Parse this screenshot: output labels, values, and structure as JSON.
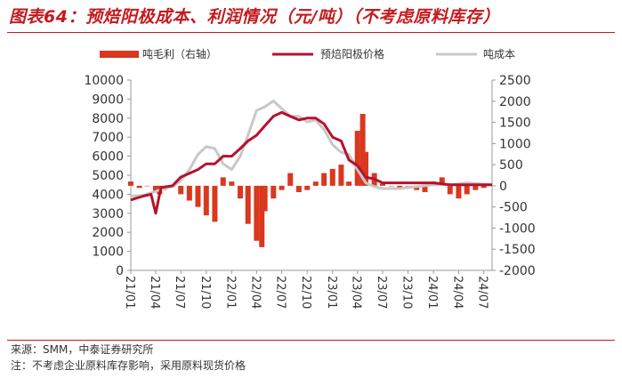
{
  "title": "图表64：预焙阳极成本、利润情况（元/吨）（不考虑原料库存）",
  "source": "来源：SMM，中泰证券研究所",
  "footnote": "注：不考虑企业原料库存影响，采用原料现货价格",
  "colors": {
    "profit": "#d9381e",
    "price": "#b5122e",
    "cost": "#c8c8c8",
    "title": "#c41a1f"
  },
  "chart_data": {
    "type": "bar+line",
    "legend_position": "top",
    "grid": false,
    "x_labels": [
      "21/01",
      "21/04",
      "21/07",
      "21/10",
      "22/01",
      "22/04",
      "22/07",
      "22/10",
      "23/01",
      "23/04",
      "23/07",
      "23/10",
      "24/01",
      "24/04",
      "24/07"
    ],
    "x_range": [
      "2021-01-01",
      "2024-07-31"
    ],
    "y_left": {
      "label": "",
      "lim": [
        0,
        10000
      ],
      "ticks": [
        0,
        1000,
        2000,
        3000,
        4000,
        5000,
        6000,
        7000,
        8000,
        9000,
        10000
      ]
    },
    "y_right": {
      "label": "",
      "lim": [
        -2000,
        2500
      ],
      "ticks": [
        -2000,
        -1500,
        -1000,
        -500,
        0,
        500,
        1000,
        1500,
        2000,
        2500
      ]
    },
    "series": [
      {
        "name": "吨毛利（右轴）",
        "kind": "bar",
        "axis": "right",
        "x": [
          "2021-01-01",
          "2021-02-01",
          "2021-03-01",
          "2021-04-01",
          "2021-04-15",
          "2021-05-01",
          "2021-06-01",
          "2021-07-01",
          "2021-08-01",
          "2021-09-01",
          "2021-10-01",
          "2021-11-01",
          "2021-12-01",
          "2022-01-01",
          "2022-02-01",
          "2022-03-01",
          "2022-04-01",
          "2022-04-20",
          "2022-05-01",
          "2022-06-01",
          "2022-07-01",
          "2022-08-01",
          "2022-09-01",
          "2022-10-01",
          "2022-11-01",
          "2022-12-01",
          "2023-01-01",
          "2023-02-01",
          "2023-03-01",
          "2023-04-01",
          "2023-04-20",
          "2023-05-01",
          "2023-06-01",
          "2023-07-01",
          "2023-08-01",
          "2023-09-01",
          "2023-10-01",
          "2023-11-01",
          "2023-12-01",
          "2024-01-01",
          "2024-02-01",
          "2024-03-01",
          "2024-04-01",
          "2024-05-01",
          "2024-06-01",
          "2024-07-01"
        ],
        "values": [
          100,
          -50,
          0,
          -150,
          -200,
          -100,
          0,
          -200,
          -350,
          -500,
          -700,
          -850,
          200,
          100,
          -300,
          -900,
          -1300,
          -1450,
          -600,
          -300,
          -100,
          300,
          -150,
          -100,
          100,
          300,
          400,
          500,
          100,
          1300,
          1700,
          800,
          300,
          50,
          0,
          -50,
          0,
          -100,
          -150,
          100,
          200,
          -200,
          -300,
          -200,
          -100,
          -50
        ]
      },
      {
        "name": "预焙阳极价格",
        "kind": "line",
        "axis": "left",
        "x": [
          "2021-01-01",
          "2021-02-15",
          "2021-03-15",
          "2021-04-01",
          "2021-04-20",
          "2021-06-01",
          "2021-07-01",
          "2021-08-01",
          "2021-09-01",
          "2021-10-01",
          "2021-11-01",
          "2021-12-01",
          "2022-01-01",
          "2022-02-01",
          "2022-03-01",
          "2022-04-01",
          "2022-05-01",
          "2022-06-01",
          "2022-07-01",
          "2022-08-01",
          "2022-09-01",
          "2022-10-01",
          "2022-11-01",
          "2022-12-01",
          "2023-01-01",
          "2023-02-01",
          "2023-03-01",
          "2023-04-01",
          "2023-05-01",
          "2023-06-01",
          "2023-07-01",
          "2023-08-01",
          "2023-10-01",
          "2023-12-01",
          "2024-01-01",
          "2024-03-01",
          "2024-05-01",
          "2024-07-31"
        ],
        "values": [
          3700,
          3900,
          4000,
          3000,
          4350,
          4450,
          4900,
          5100,
          5300,
          5600,
          5600,
          6000,
          6000,
          6400,
          6800,
          7100,
          7600,
          8100,
          8300,
          8100,
          7900,
          8000,
          8000,
          7700,
          7000,
          6800,
          5800,
          5500,
          4900,
          4800,
          4600,
          4600,
          4600,
          4600,
          4600,
          4500,
          4500,
          4500
        ]
      },
      {
        "name": "吨成本",
        "kind": "line",
        "axis": "left",
        "x": [
          "2021-01-01",
          "2021-02-15",
          "2021-04-01",
          "2021-05-01",
          "2021-06-01",
          "2021-07-01",
          "2021-08-01",
          "2021-09-01",
          "2021-10-01",
          "2021-11-01",
          "2021-12-01",
          "2022-01-01",
          "2022-02-01",
          "2022-03-01",
          "2022-04-01",
          "2022-05-01",
          "2022-06-01",
          "2022-07-01",
          "2022-08-01",
          "2022-09-01",
          "2022-10-01",
          "2022-11-01",
          "2022-12-01",
          "2023-01-01",
          "2023-02-01",
          "2023-03-01",
          "2023-04-01",
          "2023-05-01",
          "2023-06-01",
          "2023-07-01",
          "2023-09-01",
          "2023-11-01",
          "2024-01-01",
          "2024-03-01",
          "2024-05-01",
          "2024-07-31"
        ],
        "values": [
          3900,
          3950,
          4150,
          4300,
          4400,
          4700,
          5300,
          6100,
          6500,
          6400,
          5600,
          5300,
          6000,
          7100,
          8400,
          8600,
          8900,
          8500,
          8100,
          8100,
          7800,
          7900,
          7400,
          6600,
          6200,
          6100,
          5300,
          4600,
          4400,
          4300,
          4300,
          4400,
          4500,
          4500,
          4600,
          4500
        ]
      }
    ]
  }
}
